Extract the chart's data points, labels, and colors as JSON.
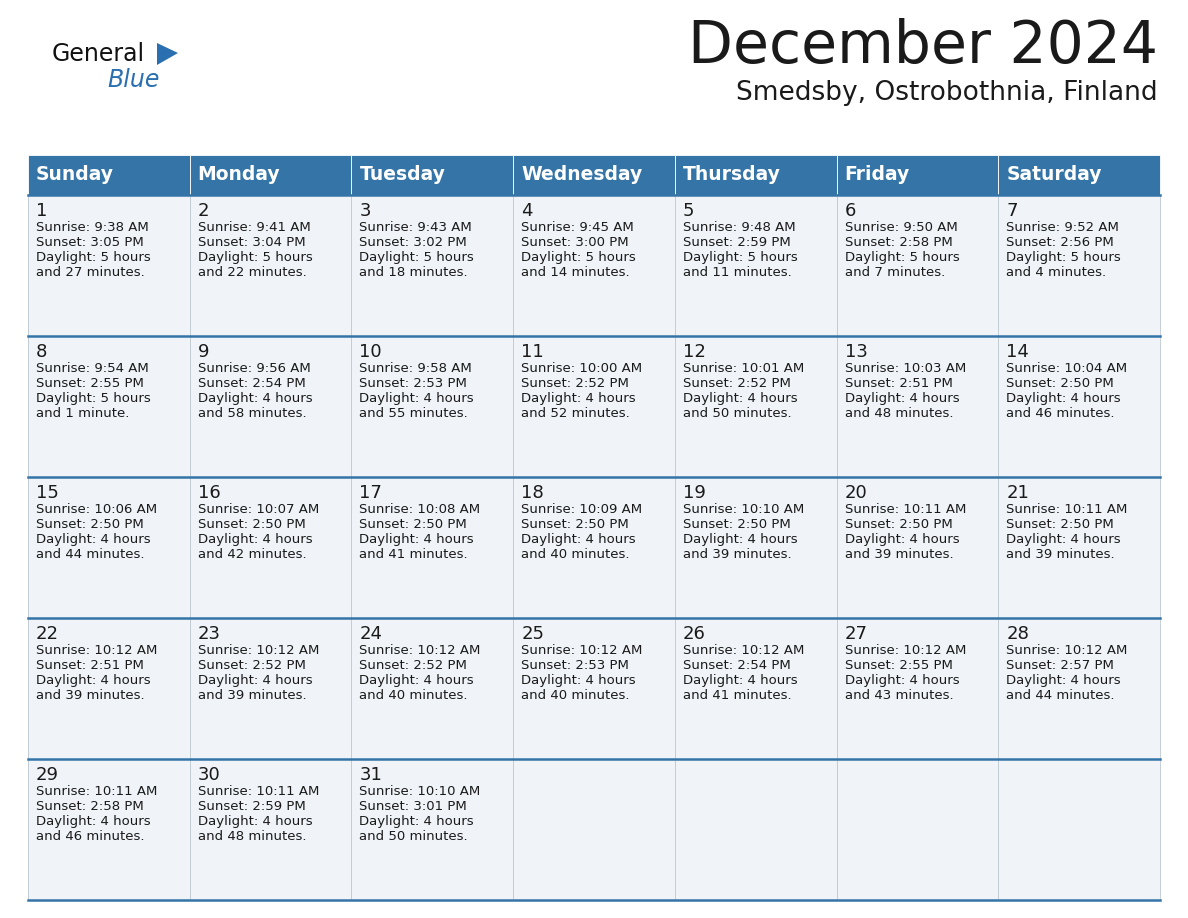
{
  "title": "December 2024",
  "subtitle": "Smedsby, Ostrobothnia, Finland",
  "header_bg": "#3474a7",
  "header_fg": "#ffffff",
  "cell_bg": "#f0f4f8",
  "line_blue": "#3474a7",
  "line_light": "#b0bec5",
  "text_dark": "#1a1a1a",
  "logo_black": "#111111",
  "logo_blue": "#2a6fb0",
  "days_of_week": [
    "Sunday",
    "Monday",
    "Tuesday",
    "Wednesday",
    "Thursday",
    "Friday",
    "Saturday"
  ],
  "weeks": [
    [
      {
        "day": "1",
        "sunrise": "9:38 AM",
        "sunset": "3:05 PM",
        "dh": "5 hours",
        "dm": "and 27 minutes."
      },
      {
        "day": "2",
        "sunrise": "9:41 AM",
        "sunset": "3:04 PM",
        "dh": "5 hours",
        "dm": "and 22 minutes."
      },
      {
        "day": "3",
        "sunrise": "9:43 AM",
        "sunset": "3:02 PM",
        "dh": "5 hours",
        "dm": "and 18 minutes."
      },
      {
        "day": "4",
        "sunrise": "9:45 AM",
        "sunset": "3:00 PM",
        "dh": "5 hours",
        "dm": "and 14 minutes."
      },
      {
        "day": "5",
        "sunrise": "9:48 AM",
        "sunset": "2:59 PM",
        "dh": "5 hours",
        "dm": "and 11 minutes."
      },
      {
        "day": "6",
        "sunrise": "9:50 AM",
        "sunset": "2:58 PM",
        "dh": "5 hours",
        "dm": "and 7 minutes."
      },
      {
        "day": "7",
        "sunrise": "9:52 AM",
        "sunset": "2:56 PM",
        "dh": "5 hours",
        "dm": "and 4 minutes."
      }
    ],
    [
      {
        "day": "8",
        "sunrise": "9:54 AM",
        "sunset": "2:55 PM",
        "dh": "5 hours",
        "dm": "and 1 minute."
      },
      {
        "day": "9",
        "sunrise": "9:56 AM",
        "sunset": "2:54 PM",
        "dh": "4 hours",
        "dm": "and 58 minutes."
      },
      {
        "day": "10",
        "sunrise": "9:58 AM",
        "sunset": "2:53 PM",
        "dh": "4 hours",
        "dm": "and 55 minutes."
      },
      {
        "day": "11",
        "sunrise": "10:00 AM",
        "sunset": "2:52 PM",
        "dh": "4 hours",
        "dm": "and 52 minutes."
      },
      {
        "day": "12",
        "sunrise": "10:01 AM",
        "sunset": "2:52 PM",
        "dh": "4 hours",
        "dm": "and 50 minutes."
      },
      {
        "day": "13",
        "sunrise": "10:03 AM",
        "sunset": "2:51 PM",
        "dh": "4 hours",
        "dm": "and 48 minutes."
      },
      {
        "day": "14",
        "sunrise": "10:04 AM",
        "sunset": "2:50 PM",
        "dh": "4 hours",
        "dm": "and 46 minutes."
      }
    ],
    [
      {
        "day": "15",
        "sunrise": "10:06 AM",
        "sunset": "2:50 PM",
        "dh": "4 hours",
        "dm": "and 44 minutes."
      },
      {
        "day": "16",
        "sunrise": "10:07 AM",
        "sunset": "2:50 PM",
        "dh": "4 hours",
        "dm": "and 42 minutes."
      },
      {
        "day": "17",
        "sunrise": "10:08 AM",
        "sunset": "2:50 PM",
        "dh": "4 hours",
        "dm": "and 41 minutes."
      },
      {
        "day": "18",
        "sunrise": "10:09 AM",
        "sunset": "2:50 PM",
        "dh": "4 hours",
        "dm": "and 40 minutes."
      },
      {
        "day": "19",
        "sunrise": "10:10 AM",
        "sunset": "2:50 PM",
        "dh": "4 hours",
        "dm": "and 39 minutes."
      },
      {
        "day": "20",
        "sunrise": "10:11 AM",
        "sunset": "2:50 PM",
        "dh": "4 hours",
        "dm": "and 39 minutes."
      },
      {
        "day": "21",
        "sunrise": "10:11 AM",
        "sunset": "2:50 PM",
        "dh": "4 hours",
        "dm": "and 39 minutes."
      }
    ],
    [
      {
        "day": "22",
        "sunrise": "10:12 AM",
        "sunset": "2:51 PM",
        "dh": "4 hours",
        "dm": "and 39 minutes."
      },
      {
        "day": "23",
        "sunrise": "10:12 AM",
        "sunset": "2:52 PM",
        "dh": "4 hours",
        "dm": "and 39 minutes."
      },
      {
        "day": "24",
        "sunrise": "10:12 AM",
        "sunset": "2:52 PM",
        "dh": "4 hours",
        "dm": "and 40 minutes."
      },
      {
        "day": "25",
        "sunrise": "10:12 AM",
        "sunset": "2:53 PM",
        "dh": "4 hours",
        "dm": "and 40 minutes."
      },
      {
        "day": "26",
        "sunrise": "10:12 AM",
        "sunset": "2:54 PM",
        "dh": "4 hours",
        "dm": "and 41 minutes."
      },
      {
        "day": "27",
        "sunrise": "10:12 AM",
        "sunset": "2:55 PM",
        "dh": "4 hours",
        "dm": "and 43 minutes."
      },
      {
        "day": "28",
        "sunrise": "10:12 AM",
        "sunset": "2:57 PM",
        "dh": "4 hours",
        "dm": "and 44 minutes."
      }
    ],
    [
      {
        "day": "29",
        "sunrise": "10:11 AM",
        "sunset": "2:58 PM",
        "dh": "4 hours",
        "dm": "and 46 minutes."
      },
      {
        "day": "30",
        "sunrise": "10:11 AM",
        "sunset": "2:59 PM",
        "dh": "4 hours",
        "dm": "and 48 minutes."
      },
      {
        "day": "31",
        "sunrise": "10:10 AM",
        "sunset": "3:01 PM",
        "dh": "4 hours",
        "dm": "and 50 minutes."
      },
      null,
      null,
      null,
      null
    ]
  ],
  "fig_w": 11.88,
  "fig_h": 9.18,
  "dpi": 100
}
